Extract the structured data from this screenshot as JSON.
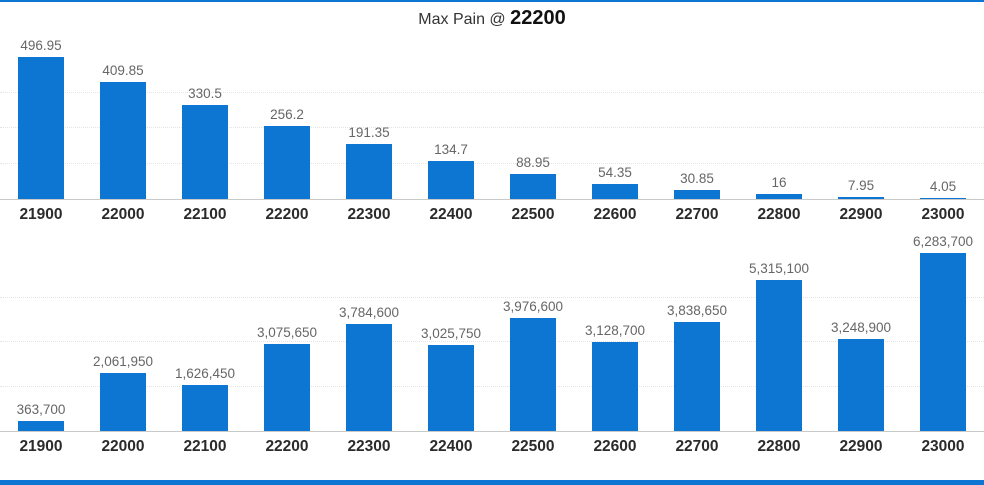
{
  "title": {
    "prefix": "Max Pain @ ",
    "value": "22200"
  },
  "colors": {
    "bar": "#0d76d2",
    "value_label": "#666666",
    "axis_label": "#2b2b2b"
  },
  "chart_data": [
    {
      "type": "bar",
      "title": "",
      "categories": [
        "21900",
        "22000",
        "22100",
        "22200",
        "22300",
        "22400",
        "22500",
        "22600",
        "22700",
        "22800",
        "22900",
        "23000"
      ],
      "values": [
        496.95,
        409.85,
        330.5,
        256.2,
        191.35,
        134.7,
        88.95,
        54.35,
        30.85,
        16,
        7.95,
        4.05
      ],
      "labels": [
        "496.95",
        "409.85",
        "330.5",
        "256.2",
        "191.35",
        "134.7",
        "88.95",
        "54.35",
        "30.85",
        "16",
        "7.95",
        "4.05"
      ],
      "xlabel": "",
      "ylabel": "",
      "ylim": [
        0,
        500
      ],
      "grid": true,
      "legend": "none"
    },
    {
      "type": "bar",
      "title": "",
      "categories": [
        "21900",
        "22000",
        "22100",
        "22200",
        "22300",
        "22400",
        "22500",
        "22600",
        "22700",
        "22800",
        "22900",
        "23000"
      ],
      "values": [
        363700,
        2061950,
        1626450,
        3075650,
        3784600,
        3025750,
        3976600,
        3128700,
        3838650,
        5315100,
        3248900,
        6283700
      ],
      "labels": [
        "363,700",
        "2,061,950",
        "1,626,450",
        "3,075,650",
        "3,784,600",
        "3,025,750",
        "3,976,600",
        "3,128,700",
        "3,838,650",
        "5,315,100",
        "3,248,900",
        "6,283,700"
      ],
      "xlabel": "",
      "ylabel": "",
      "ylim": [
        0,
        6500000
      ],
      "grid": true,
      "legend": "none"
    }
  ]
}
